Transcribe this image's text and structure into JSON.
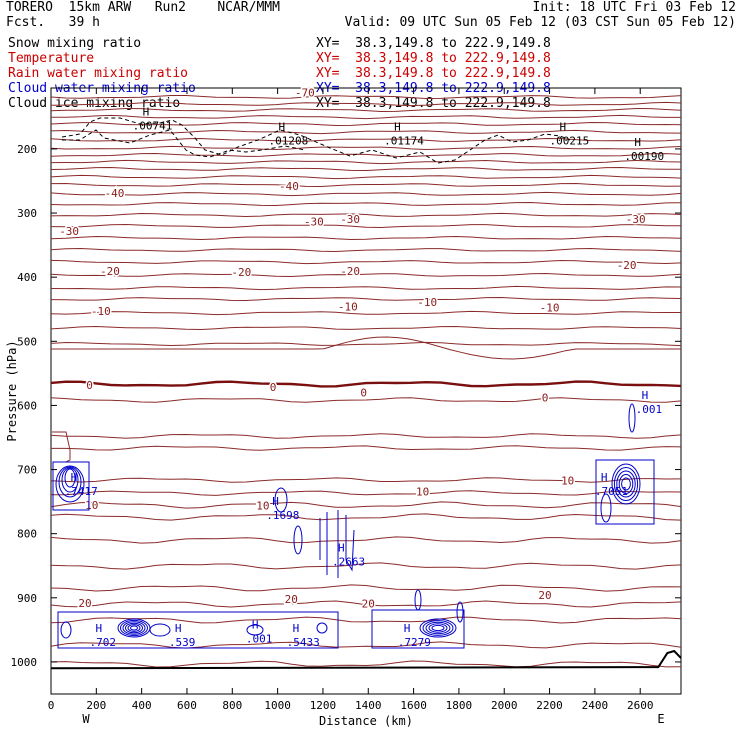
{
  "header": {
    "model": "TORERO  15km ARW   Run2    NCAR/MMM",
    "init": "Init: 18 UTC Fri 03 Feb 12",
    "fcst": "Fcst.   39 h",
    "valid": "Valid: 09 UTC Sun 05 Feb 12 (03 CST Sun 05 Feb 12)"
  },
  "legend": [
    {
      "label": "Snow mixing ratio",
      "xy": "XY=  38.3,149.8 to 222.9,149.8",
      "color": "#000000"
    },
    {
      "label": "Temperature",
      "xy": "XY=  38.3,149.8 to 222.9,149.8",
      "color": "#cc0000"
    },
    {
      "label": "Rain water mixing ratio",
      "xy": "XY=  38.3,149.8 to 222.9,149.8",
      "color": "#cc0000"
    },
    {
      "label": "Cloud water mixing ratio",
      "xy": "XY=  38.3,149.8 to 222.9,149.8",
      "color": "#0000cc"
    },
    {
      "label": "Cloud ice mixing ratio",
      "xy": "XY=  38.3,149.8 to 222.9,149.8",
      "color": "#000000"
    }
  ],
  "chart_data": {
    "type": "contour-cross-section",
    "xlabel": "Distance (km)",
    "ylabel": "Pressure (hPa)",
    "xlim": [
      0,
      2780
    ],
    "ylim": [
      1050,
      105
    ],
    "x_ticks": [
      0,
      200,
      400,
      600,
      800,
      1000,
      1200,
      1400,
      1600,
      1800,
      2000,
      2200,
      2400,
      2600
    ],
    "y_ticks": [
      200,
      300,
      400,
      500,
      600,
      700,
      800,
      900,
      1000
    ],
    "x_end_labels": {
      "left": "W",
      "right": "E"
    },
    "temperature_label_color": "#8b1a1a",
    "cloud_water_color": "#0000cc",
    "temperature_labels": [
      {
        "t": "-70",
        "x": 1120,
        "p": 112
      },
      {
        "t": "-40",
        "x": 280,
        "p": 269
      },
      {
        "t": "-40",
        "x": 1050,
        "p": 258
      },
      {
        "t": "-30",
        "x": 80,
        "p": 328
      },
      {
        "t": "-30",
        "x": 1160,
        "p": 313
      },
      {
        "t": "-30",
        "x": 1320,
        "p": 309
      },
      {
        "t": "-30",
        "x": 2580,
        "p": 309
      },
      {
        "t": "-20",
        "x": 260,
        "p": 390
      },
      {
        "t": "-20",
        "x": 840,
        "p": 392
      },
      {
        "t": "-20",
        "x": 1320,
        "p": 390
      },
      {
        "t": "-20",
        "x": 2540,
        "p": 381
      },
      {
        "t": "-10",
        "x": 220,
        "p": 453
      },
      {
        "t": "-10",
        "x": 1310,
        "p": 446
      },
      {
        "t": "-10",
        "x": 1660,
        "p": 439
      },
      {
        "t": "-10",
        "x": 2200,
        "p": 447
      },
      {
        "t": "0",
        "x": 170,
        "p": 568
      },
      {
        "t": "0",
        "x": 980,
        "p": 571
      },
      {
        "t": "0",
        "x": 1380,
        "p": 580
      },
      {
        "t": "0",
        "x": 2180,
        "p": 588
      },
      {
        "t": "10",
        "x": 180,
        "p": 755
      },
      {
        "t": "10",
        "x": 935,
        "p": 756
      },
      {
        "t": "10",
        "x": 1640,
        "p": 734
      },
      {
        "t": "10",
        "x": 2280,
        "p": 717
      },
      {
        "t": "20",
        "x": 150,
        "p": 908
      },
      {
        "t": "20",
        "x": 1060,
        "p": 902
      },
      {
        "t": "20",
        "x": 1400,
        "p": 909
      },
      {
        "t": "20",
        "x": 2180,
        "p": 896
      }
    ],
    "snow_maxima": [
      {
        "value": ".00741",
        "x": 360,
        "p": 170
      },
      {
        "value": ".01208",
        "x": 960,
        "p": 193
      },
      {
        "value": ".01174",
        "x": 1470,
        "p": 193
      },
      {
        "value": ".00215",
        "x": 2200,
        "p": 193
      },
      {
        "value": ".00190",
        "x": 2530,
        "p": 217
      }
    ],
    "cloud_water_maxima": [
      {
        "value": ".001",
        "x": 2580,
        "p": 612
      },
      {
        "value": ".7417",
        "x": 60,
        "p": 740
      },
      {
        "value": ".7051",
        "x": 2400,
        "p": 740
      },
      {
        "value": ".1698",
        "x": 950,
        "p": 777
      },
      {
        "value": ".2663",
        "x": 1240,
        "p": 850
      },
      {
        "value": ".702",
        "x": 170,
        "p": 975
      },
      {
        "value": ".539",
        "x": 520,
        "p": 975
      },
      {
        "value": ".001",
        "x": 860,
        "p": 970
      },
      {
        "value": ".5433",
        "x": 1040,
        "p": 975
      },
      {
        "value": ".7279",
        "x": 1530,
        "p": 975
      }
    ],
    "terrain": [
      {
        "x": 0,
        "p": 1010
      },
      {
        "x": 2680,
        "p": 1008
      },
      {
        "x": 2720,
        "p": 986
      },
      {
        "x": 2750,
        "p": 983
      },
      {
        "x": 2780,
        "p": 994
      }
    ]
  }
}
